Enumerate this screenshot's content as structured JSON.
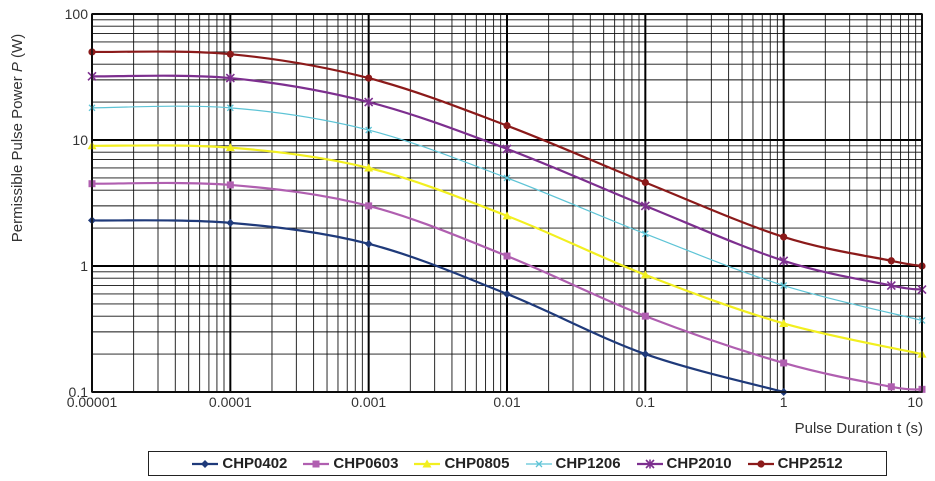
{
  "chart_data": {
    "type": "line",
    "xlabel": "Pulse Duration t (s)",
    "ylabel_prefix": "Permissible Pulse Power ",
    "ylabel_symbol": "P",
    "ylabel_suffix": " (W)",
    "x_scale": "log",
    "y_scale": "log",
    "xlim": [
      1e-05,
      10
    ],
    "ylim": [
      0.1,
      100
    ],
    "grid": true,
    "legend_position": "bottom",
    "x_ticks": [
      {
        "value": 1e-05,
        "label": "0.00001"
      },
      {
        "value": 0.0001,
        "label": "0.0001"
      },
      {
        "value": 0.001,
        "label": "0.001"
      },
      {
        "value": 0.01,
        "label": "0.01"
      },
      {
        "value": 0.1,
        "label": "0.1"
      },
      {
        "value": 1,
        "label": "1"
      },
      {
        "value": 10,
        "label": "10"
      }
    ],
    "y_ticks": [
      {
        "value": 0.1,
        "label": "0.1"
      },
      {
        "value": 1,
        "label": "1"
      },
      {
        "value": 10,
        "label": "10"
      },
      {
        "value": 100,
        "label": "100"
      }
    ],
    "series": [
      {
        "name": "CHP0402",
        "color": "#1f3a7a",
        "marker": "diamond",
        "points": [
          [
            1e-05,
            2.3
          ],
          [
            0.0001,
            2.2
          ],
          [
            0.001,
            1.5
          ],
          [
            0.01,
            0.6
          ],
          [
            0.1,
            0.2
          ],
          [
            1,
            0.1
          ]
        ]
      },
      {
        "name": "CHP0603",
        "color": "#b05fb0",
        "marker": "square",
        "points": [
          [
            1e-05,
            4.5
          ],
          [
            0.0001,
            4.4
          ],
          [
            0.001,
            3.0
          ],
          [
            0.01,
            1.2
          ],
          [
            0.1,
            0.4
          ],
          [
            1,
            0.17
          ],
          [
            6,
            0.11
          ],
          [
            10,
            0.105
          ]
        ]
      },
      {
        "name": "CHP0805",
        "color": "#f2ef1f",
        "marker": "triangle",
        "points": [
          [
            1e-05,
            9
          ],
          [
            0.0001,
            8.7
          ],
          [
            0.001,
            6.0
          ],
          [
            0.01,
            2.5
          ],
          [
            0.1,
            0.85
          ],
          [
            1,
            0.35
          ],
          [
            10,
            0.2
          ]
        ]
      },
      {
        "name": "CHP1206",
        "color": "#5ec4d6",
        "marker": "x",
        "points": [
          [
            1e-05,
            18
          ],
          [
            0.0001,
            18
          ],
          [
            0.001,
            12
          ],
          [
            0.01,
            5
          ],
          [
            0.1,
            1.8
          ],
          [
            1,
            0.7
          ],
          [
            10,
            0.37
          ]
        ]
      },
      {
        "name": "CHP2010",
        "color": "#7d2f8f",
        "marker": "star",
        "points": [
          [
            1e-05,
            32
          ],
          [
            0.0001,
            31
          ],
          [
            0.001,
            20
          ],
          [
            0.01,
            8.5
          ],
          [
            0.1,
            3.0
          ],
          [
            1,
            1.1
          ],
          [
            6,
            0.7
          ],
          [
            10,
            0.65
          ]
        ]
      },
      {
        "name": "CHP2512",
        "color": "#8b1a1a",
        "marker": "circle",
        "points": [
          [
            1e-05,
            50
          ],
          [
            0.0001,
            48
          ],
          [
            0.001,
            31
          ],
          [
            0.01,
            13
          ],
          [
            0.1,
            4.6
          ],
          [
            1,
            1.7
          ],
          [
            6,
            1.1
          ],
          [
            10,
            1.0
          ]
        ]
      }
    ]
  }
}
